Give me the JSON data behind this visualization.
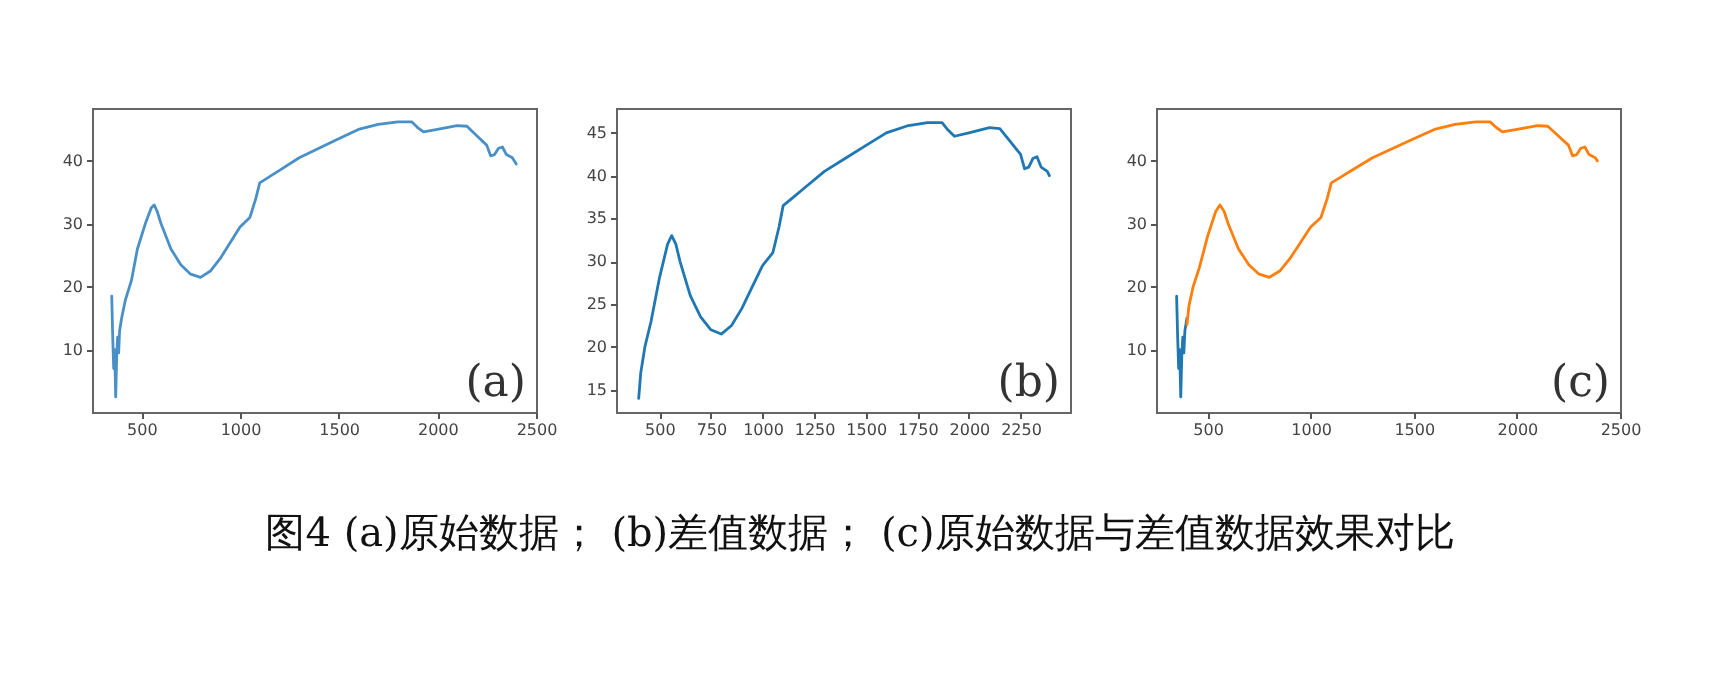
{
  "chart_data": [
    {
      "type": "line",
      "xlim": [
        250,
        2500
      ],
      "ylim": [
        0.1,
        48.4
      ],
      "xticks": [
        500,
        1000,
        1500,
        2000,
        2500
      ],
      "yticks": [
        10,
        20,
        30,
        40
      ],
      "grid": false,
      "annotations": [
        "(a)"
      ],
      "series": [
        {
          "color": "#4a90c8",
          "x": [
            350,
            355,
            360,
            365,
            370,
            375,
            380,
            385,
            390,
            400,
            420,
            450,
            480,
            520,
            550,
            565,
            580,
            600,
            650,
            700,
            750,
            800,
            850,
            900,
            950,
            1000,
            1050,
            1080,
            1100,
            1150,
            1200,
            1300,
            1400,
            1500,
            1600,
            1700,
            1800,
            1870,
            1900,
            1930,
            2000,
            2100,
            2150,
            2200,
            2250,
            2270,
            2290,
            2310,
            2330,
            2350,
            2380,
            2400
          ],
          "values": [
            18.5,
            12,
            7,
            10,
            2.5,
            9,
            12,
            9.5,
            13,
            15,
            18,
            21,
            26,
            30,
            32.5,
            33,
            32,
            30,
            26,
            23.5,
            22,
            21.5,
            22.5,
            24.5,
            27,
            29.5,
            31,
            34,
            36.5,
            37.5,
            38.5,
            40.5,
            42,
            43.5,
            45,
            45.8,
            46.2,
            46.2,
            45.3,
            44.6,
            45,
            45.6,
            45.5,
            44,
            42.5,
            40.8,
            41,
            42,
            42.2,
            41,
            40.5,
            39.5
          ]
        }
      ]
    },
    {
      "type": "line",
      "xlim": [
        290,
        2490
      ],
      "ylim": [
        12.4,
        47.9
      ],
      "xticks": [
        500,
        750,
        1000,
        1250,
        1500,
        1750,
        2000,
        2250
      ],
      "yticks": [
        15,
        20,
        25,
        30,
        35,
        40,
        45
      ],
      "grid": false,
      "annotations": [
        "(b)"
      ],
      "series": [
        {
          "color": "#1f77b4",
          "x": [
            400,
            410,
            430,
            460,
            500,
            540,
            560,
            580,
            600,
            650,
            700,
            750,
            800,
            850,
            900,
            950,
            1000,
            1050,
            1080,
            1100,
            1150,
            1200,
            1300,
            1400,
            1500,
            1600,
            1700,
            1800,
            1870,
            1900,
            1930,
            2000,
            2100,
            2150,
            2200,
            2250,
            2270,
            2290,
            2310,
            2330,
            2350,
            2380,
            2390
          ],
          "values": [
            14,
            17,
            20,
            23,
            28,
            32,
            33,
            32,
            30,
            26,
            23.5,
            22,
            21.5,
            22.5,
            24.5,
            27,
            29.5,
            31,
            34,
            36.5,
            37.5,
            38.5,
            40.5,
            42,
            43.5,
            45,
            45.8,
            46.2,
            46.2,
            45.3,
            44.6,
            45,
            45.6,
            45.5,
            44,
            42.5,
            40.8,
            41,
            42,
            42.2,
            41,
            40.5,
            40
          ]
        }
      ]
    },
    {
      "type": "line",
      "xlim": [
        250,
        2500
      ],
      "ylim": [
        0.1,
        48.4
      ],
      "xticks": [
        500,
        1000,
        1500,
        2000,
        2500
      ],
      "yticks": [
        10,
        20,
        30,
        40
      ],
      "grid": false,
      "annotations": [
        "(c)"
      ],
      "series": [
        {
          "color": "#1f77b4",
          "x": [
            350,
            355,
            360,
            365,
            370,
            375,
            380,
            385,
            390,
            400
          ],
          "values": [
            18.5,
            12,
            7,
            10,
            2.5,
            9,
            12,
            9.5,
            13,
            15
          ]
        },
        {
          "color": "#ff7f0e",
          "x": [
            400,
            410,
            430,
            460,
            500,
            540,
            560,
            580,
            600,
            650,
            700,
            750,
            800,
            850,
            900,
            950,
            1000,
            1050,
            1080,
            1100,
            1150,
            1200,
            1300,
            1400,
            1500,
            1600,
            1700,
            1800,
            1870,
            1900,
            1930,
            2000,
            2100,
            2150,
            2200,
            2250,
            2270,
            2290,
            2310,
            2330,
            2350,
            2380,
            2390
          ],
          "values": [
            14,
            17,
            20,
            23,
            28,
            32,
            33,
            32,
            30,
            26,
            23.5,
            22,
            21.5,
            22.5,
            24.5,
            27,
            29.5,
            31,
            34,
            36.5,
            37.5,
            38.5,
            40.5,
            42,
            43.5,
            45,
            45.8,
            46.2,
            46.2,
            45.3,
            44.6,
            45,
            45.6,
            45.5,
            44,
            42.5,
            40.8,
            41,
            42,
            42.2,
            41,
            40.5,
            40
          ]
        }
      ]
    },
    {
      "type": "other",
      "annotations": [
        "图4 (a)原始数据； (b)差值数据； (c)原始数据与差值数据效果对比"
      ]
    }
  ]
}
